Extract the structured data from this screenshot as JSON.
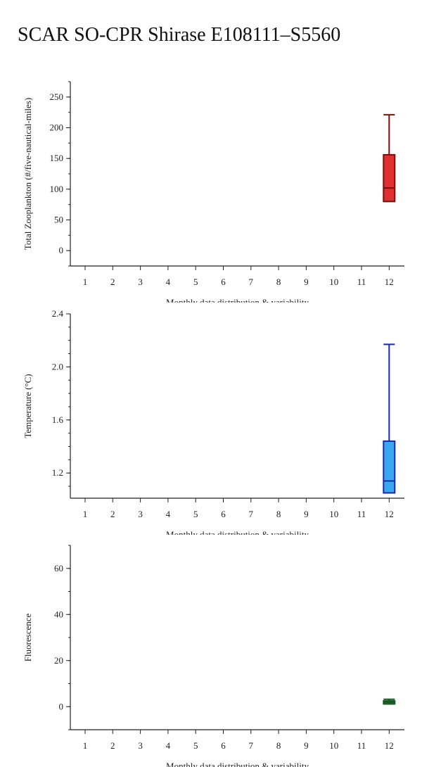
{
  "page": {
    "title": "SCAR SO-CPR Shirase E108111–S5560"
  },
  "chart_data": [
    {
      "type": "box",
      "ylabel": "Total Zooplankton (#/five-nautical-miles)",
      "xlabel": "Monthly data distribution & variability",
      "x_ticks": [
        "1",
        "2",
        "3",
        "4",
        "5",
        "6",
        "7",
        "8",
        "9",
        "10",
        "11",
        "12"
      ],
      "ylim": [
        -25,
        275
      ],
      "y_ticks": [
        0,
        50,
        100,
        150,
        200,
        250
      ],
      "y_minor_step": 25,
      "y_decimals": 0,
      "box_fill": "#e03030",
      "box_stroke": "#7a1010",
      "boxes": [
        {
          "month": 12,
          "whisker_low": 80,
          "q1": 80,
          "median": 102,
          "q3": 156,
          "whisker_high": 221
        }
      ]
    },
    {
      "type": "box",
      "ylabel": "Temperature (°C)",
      "xlabel": "Monthly data distribution & variability",
      "x_ticks": [
        "1",
        "2",
        "3",
        "4",
        "5",
        "6",
        "7",
        "8",
        "9",
        "10",
        "11",
        "12"
      ],
      "ylim": [
        1.01,
        2.4
      ],
      "y_ticks": [
        1.2,
        1.6,
        2.0,
        2.4
      ],
      "y_minor_step": 0.1,
      "y_decimals": 1,
      "box_fill": "#3aa8f0",
      "box_stroke": "#1a2aa8",
      "boxes": [
        {
          "month": 12,
          "whisker_low": 1.05,
          "q1": 1.05,
          "median": 1.14,
          "q3": 1.44,
          "whisker_high": 2.17
        }
      ]
    },
    {
      "type": "box",
      "ylabel": "Fluorescence",
      "xlabel": "Monthly data distribution & variability",
      "x_ticks": [
        "1",
        "2",
        "3",
        "4",
        "5",
        "6",
        "7",
        "8",
        "9",
        "10",
        "11",
        "12"
      ],
      "ylim": [
        -10,
        70
      ],
      "y_ticks": [
        0,
        20,
        40,
        60
      ],
      "y_minor_step": 10,
      "y_decimals": 0,
      "box_fill": "#2e9a3a",
      "box_stroke": "#145a20",
      "boxes": [
        {
          "month": 12,
          "whisker_low": 1.2,
          "q1": 1.2,
          "median": 1.9,
          "q3": 2.5,
          "whisker_high": 3.2
        }
      ]
    }
  ]
}
